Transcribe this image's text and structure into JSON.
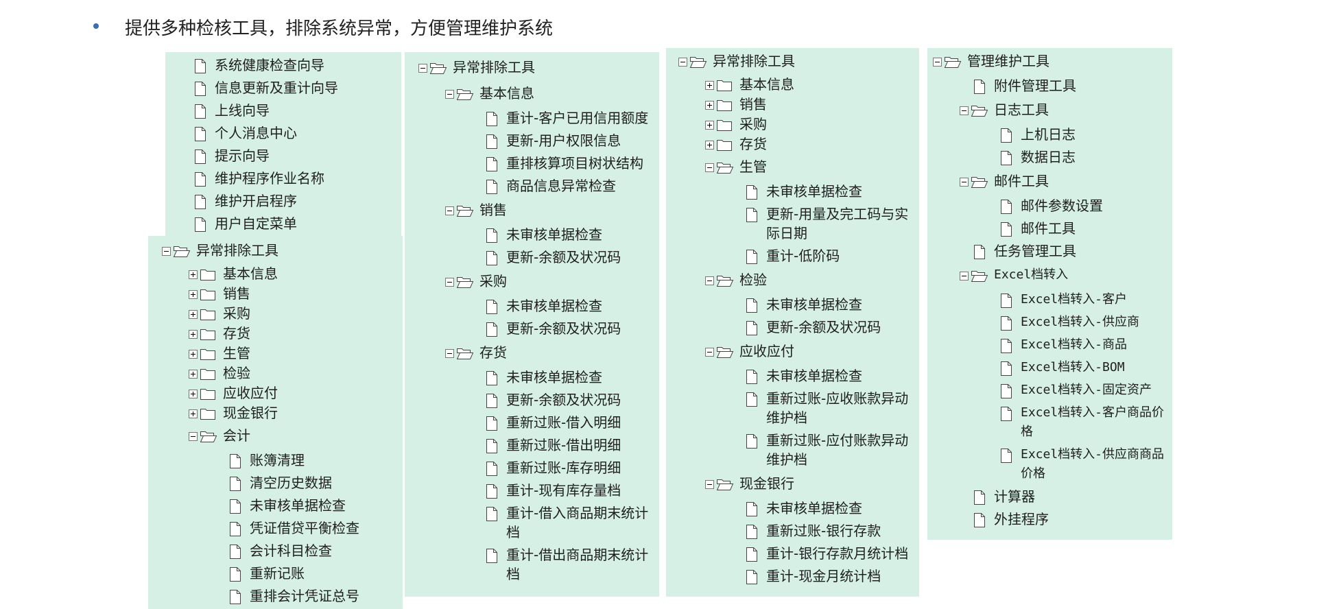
{
  "header": {
    "bullet": "提供多种检核工具，排除系统异常，方便管理维护系统"
  },
  "panels": [
    {
      "items": [
        {
          "icon": "file",
          "level": 0,
          "label": "系统健康检查向导"
        },
        {
          "icon": "file",
          "level": 0,
          "label": "信息更新及重计向导"
        },
        {
          "icon": "file",
          "level": 0,
          "label": "上线向导"
        },
        {
          "icon": "file",
          "level": 0,
          "label": "个人消息中心"
        },
        {
          "icon": "file",
          "level": 0,
          "label": "提示向导"
        },
        {
          "icon": "file",
          "level": 0,
          "label": "维护程序作业名称"
        },
        {
          "icon": "file",
          "level": 0,
          "label": "维护开启程序"
        },
        {
          "icon": "file",
          "level": 0,
          "label": "用户自定菜单"
        }
      ]
    },
    {
      "items": [
        {
          "icon": "open",
          "level": 0,
          "label": "异常排除工具"
        },
        {
          "icon": "closed",
          "level": 1,
          "label": "基本信息"
        },
        {
          "icon": "closed",
          "level": 1,
          "label": "销售"
        },
        {
          "icon": "closed",
          "level": 1,
          "label": "采购"
        },
        {
          "icon": "closed",
          "level": 1,
          "label": "存货"
        },
        {
          "icon": "closed",
          "level": 1,
          "label": "生管"
        },
        {
          "icon": "closed",
          "level": 1,
          "label": "检验"
        },
        {
          "icon": "closed",
          "level": 1,
          "label": "应收应付"
        },
        {
          "icon": "closed",
          "level": 1,
          "label": "现金银行"
        },
        {
          "icon": "open",
          "level": 1,
          "label": "会计"
        },
        {
          "icon": "file",
          "level": 2,
          "label": "账簿清理"
        },
        {
          "icon": "file",
          "level": 2,
          "label": "清空历史数据"
        },
        {
          "icon": "file",
          "level": 2,
          "label": "未审核单据检查"
        },
        {
          "icon": "file",
          "level": 2,
          "label": "凭证借贷平衡检查"
        },
        {
          "icon": "file",
          "level": 2,
          "label": "会计科目检查"
        },
        {
          "icon": "file",
          "level": 2,
          "label": "重新记账"
        },
        {
          "icon": "file",
          "level": 2,
          "label": "重排会计凭证总号"
        }
      ]
    },
    {
      "items": [
        {
          "icon": "open",
          "level": 0,
          "label": "异常排除工具"
        },
        {
          "icon": "open",
          "level": 1,
          "label": "基本信息"
        },
        {
          "icon": "file",
          "level": 2,
          "label": "重计-客户已用信用额度"
        },
        {
          "icon": "file",
          "level": 2,
          "label": "更新-用户权限信息"
        },
        {
          "icon": "file",
          "level": 2,
          "label": "重排核算项目树状结构"
        },
        {
          "icon": "file",
          "level": 2,
          "label": "商品信息异常检查"
        },
        {
          "icon": "open",
          "level": 1,
          "label": "销售"
        },
        {
          "icon": "file",
          "level": 2,
          "label": "未审核单据检查"
        },
        {
          "icon": "file",
          "level": 2,
          "label": "更新-余额及状况码"
        },
        {
          "icon": "open",
          "level": 1,
          "label": "采购"
        },
        {
          "icon": "file",
          "level": 2,
          "label": "未审核单据检查"
        },
        {
          "icon": "file",
          "level": 2,
          "label": "更新-余额及状况码"
        },
        {
          "icon": "open",
          "level": 1,
          "label": "存货"
        },
        {
          "icon": "file",
          "level": 2,
          "label": "未审核单据检查"
        },
        {
          "icon": "file",
          "level": 2,
          "label": "更新-余额及状况码"
        },
        {
          "icon": "file",
          "level": 2,
          "label": "重新过账-借入明细"
        },
        {
          "icon": "file",
          "level": 2,
          "label": "重新过账-借出明细"
        },
        {
          "icon": "file",
          "level": 2,
          "label": "重新过账-库存明细"
        },
        {
          "icon": "file",
          "level": 2,
          "label": "重计-现有库存量档"
        },
        {
          "icon": "file",
          "level": 2,
          "label": "重计-借入商品期末统计档"
        },
        {
          "icon": "file",
          "level": 2,
          "label": "重计-借出商品期末统计档"
        }
      ]
    },
    {
      "items": [
        {
          "icon": "open",
          "level": 0,
          "label": "异常排除工具"
        },
        {
          "icon": "closed",
          "level": 1,
          "label": "基本信息"
        },
        {
          "icon": "closed",
          "level": 1,
          "label": "销售"
        },
        {
          "icon": "closed",
          "level": 1,
          "label": "采购"
        },
        {
          "icon": "closed",
          "level": 1,
          "label": "存货"
        },
        {
          "icon": "open",
          "level": 1,
          "label": "生管"
        },
        {
          "icon": "file",
          "level": 2,
          "label": "未审核单据检查"
        },
        {
          "icon": "file",
          "level": 2,
          "label": "更新-用量及完工码与实际日期"
        },
        {
          "icon": "file",
          "level": 2,
          "label": "重计-低阶码"
        },
        {
          "icon": "open",
          "level": 1,
          "label": "检验"
        },
        {
          "icon": "file",
          "level": 2,
          "label": "未审核单据检查"
        },
        {
          "icon": "file",
          "level": 2,
          "label": "更新-余额及状况码"
        },
        {
          "icon": "open",
          "level": 1,
          "label": "应收应付"
        },
        {
          "icon": "file",
          "level": 2,
          "label": "未审核单据检查"
        },
        {
          "icon": "file",
          "level": 2,
          "label": "重新过账-应收账款异动维护档"
        },
        {
          "icon": "file",
          "level": 2,
          "label": "重新过账-应付账款异动维护档"
        },
        {
          "icon": "open",
          "level": 1,
          "label": "现金银行"
        },
        {
          "icon": "file",
          "level": 2,
          "label": "未审核单据检查"
        },
        {
          "icon": "file",
          "level": 2,
          "label": "重新过账-银行存款"
        },
        {
          "icon": "file",
          "level": 2,
          "label": "重计-银行存款月统计档"
        },
        {
          "icon": "file",
          "level": 2,
          "label": "重计-现金月统计档"
        }
      ]
    },
    {
      "items": [
        {
          "icon": "open",
          "level": 0,
          "label": "管理维护工具"
        },
        {
          "icon": "file",
          "level": 1,
          "label": "附件管理工具"
        },
        {
          "icon": "open",
          "level": 1,
          "label": "日志工具"
        },
        {
          "icon": "file",
          "level": 2,
          "label": "上机日志"
        },
        {
          "icon": "file",
          "level": 2,
          "label": "数据日志"
        },
        {
          "icon": "open",
          "level": 1,
          "label": "邮件工具"
        },
        {
          "icon": "file",
          "level": 2,
          "label": "邮件参数设置"
        },
        {
          "icon": "file",
          "level": 2,
          "label": "邮件工具"
        },
        {
          "icon": "file",
          "level": 1,
          "label": "任务管理工具"
        },
        {
          "icon": "open",
          "level": 1,
          "label": "Excel档转入"
        },
        {
          "icon": "file",
          "level": 2,
          "label": "Excel档转入-客户"
        },
        {
          "icon": "file",
          "level": 2,
          "label": "Excel档转入-供应商"
        },
        {
          "icon": "file",
          "level": 2,
          "label": "Excel档转入-商品"
        },
        {
          "icon": "file",
          "level": 2,
          "label": "Excel档转入-BOM"
        },
        {
          "icon": "file",
          "level": 2,
          "label": "Excel档转入-固定资产"
        },
        {
          "icon": "file",
          "level": 2,
          "label": "Excel档转入-客户商品价格"
        },
        {
          "icon": "file",
          "level": 2,
          "label": "Excel档转入-供应商商品价格"
        },
        {
          "icon": "file",
          "level": 1,
          "label": "计算器"
        },
        {
          "icon": "file",
          "level": 1,
          "label": "外挂程序"
        }
      ]
    }
  ]
}
